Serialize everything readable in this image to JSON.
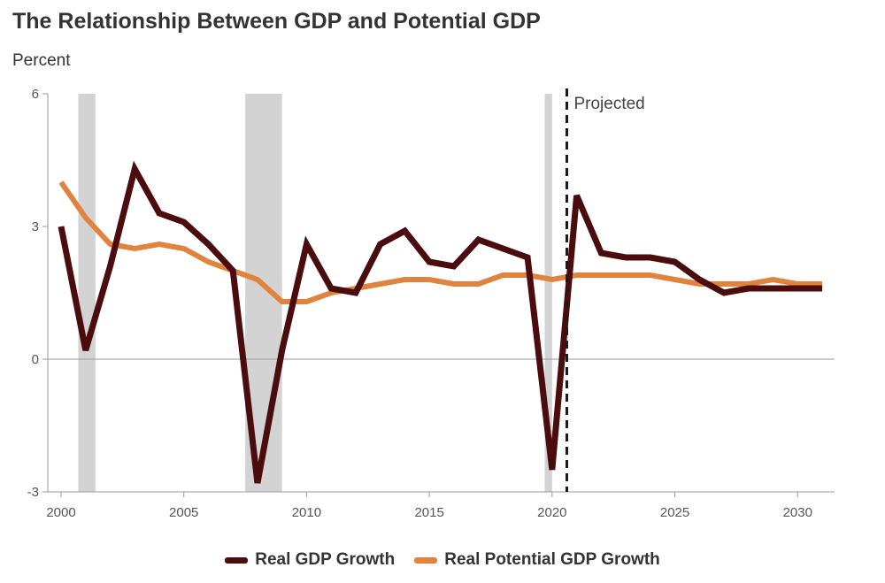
{
  "chart_data": {
    "type": "line",
    "title": "The Relationship Between GDP and Potential GDP",
    "ylabel": "Percent",
    "xlabel": "",
    "xlim": [
      2000,
      2031
    ],
    "ylim": [
      -3,
      6
    ],
    "yticks": [
      6,
      3,
      0,
      -3
    ],
    "xticks": [
      2000,
      2005,
      2010,
      2015,
      2020,
      2025,
      2030
    ],
    "recessions": [
      [
        2000.7,
        2001.4
      ],
      [
        2007.5,
        2009.0
      ],
      [
        2019.7,
        2020.0
      ]
    ],
    "projection_start": 2020.6,
    "annotation": "Projected",
    "series": [
      {
        "name": "Real GDP Growth",
        "color": "#4a0c0c",
        "x": [
          2000,
          2001,
          2002,
          2003,
          2004,
          2005,
          2006,
          2007,
          2008,
          2009,
          2010,
          2011,
          2012,
          2013,
          2014,
          2015,
          2016,
          2017,
          2018,
          2019,
          2020,
          2021,
          2022,
          2023,
          2024,
          2025,
          2026,
          2027,
          2028,
          2029,
          2030,
          2031
        ],
        "values": [
          3.0,
          0.2,
          2.1,
          4.3,
          3.3,
          3.1,
          2.6,
          2.0,
          -2.8,
          0.2,
          2.6,
          1.6,
          1.5,
          2.6,
          2.9,
          2.2,
          2.1,
          2.7,
          2.5,
          2.3,
          -2.5,
          3.7,
          2.4,
          2.3,
          2.3,
          2.2,
          1.8,
          1.5,
          1.6,
          1.6,
          1.6,
          1.6
        ]
      },
      {
        "name": "Real Potential GDP Growth",
        "color": "#e0833e",
        "x": [
          2000,
          2001,
          2002,
          2003,
          2004,
          2005,
          2006,
          2007,
          2008,
          2009,
          2010,
          2011,
          2012,
          2013,
          2014,
          2015,
          2016,
          2017,
          2018,
          2019,
          2020,
          2021,
          2022,
          2023,
          2024,
          2025,
          2026,
          2027,
          2028,
          2029,
          2030,
          2031
        ],
        "values": [
          4.0,
          3.2,
          2.6,
          2.5,
          2.6,
          2.5,
          2.2,
          2.0,
          1.8,
          1.3,
          1.3,
          1.5,
          1.6,
          1.7,
          1.8,
          1.8,
          1.7,
          1.7,
          1.9,
          1.9,
          1.8,
          1.9,
          1.9,
          1.9,
          1.9,
          1.8,
          1.7,
          1.7,
          1.7,
          1.8,
          1.7,
          1.7
        ]
      }
    ]
  }
}
